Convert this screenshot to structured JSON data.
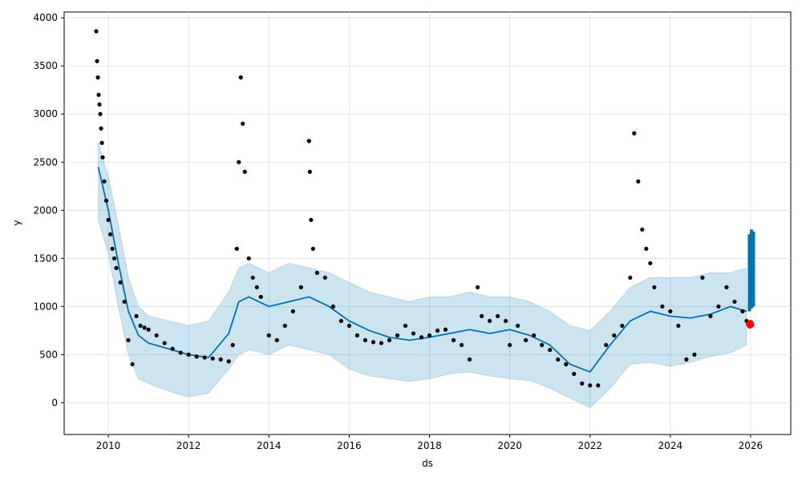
{
  "chart_data": {
    "type": "line",
    "title": "",
    "xlabel": "ds",
    "ylabel": "y",
    "xlim": [
      2008.9,
      2027.0
    ],
    "ylim": [
      -330,
      4060
    ],
    "x_ticks": [
      2010,
      2012,
      2014,
      2016,
      2018,
      2020,
      2022,
      2024,
      2026
    ],
    "y_ticks": [
      0,
      500,
      1000,
      1500,
      2000,
      2500,
      3000,
      3500,
      4000
    ],
    "grid": true,
    "colors": {
      "forecast_line": "#0072B2",
      "interval_fill": "#0072B2",
      "observed_points": "#000000",
      "recent_points": "#ff0000"
    },
    "series": [
      {
        "kind": "interval",
        "x": [
          2009.75,
          2010.0,
          2010.25,
          2010.5,
          2010.75,
          2011.0,
          2011.5,
          2012.0,
          2012.5,
          2013.0,
          2013.25,
          2013.5,
          2014.0,
          2014.5,
          2015.0,
          2015.5,
          2016.0,
          2016.5,
          2017.0,
          2017.5,
          2018.0,
          2018.5,
          2019.0,
          2019.5,
          2020.0,
          2020.5,
          2021.0,
          2021.5,
          2022.0,
          2022.5,
          2023.0,
          2023.5,
          2024.0,
          2024.5,
          2025.0,
          2025.5,
          2025.9
        ],
        "lower": [
          1900,
          1550,
          1000,
          500,
          250,
          200,
          120,
          60,
          100,
          350,
          500,
          550,
          500,
          600,
          550,
          500,
          350,
          280,
          250,
          220,
          250,
          300,
          320,
          280,
          250,
          230,
          150,
          50,
          -50,
          150,
          400,
          420,
          380,
          420,
          480,
          520,
          600
        ],
        "upper": [
          2700,
          2350,
          1850,
          1300,
          1000,
          900,
          850,
          800,
          850,
          1150,
          1400,
          1450,
          1350,
          1450,
          1400,
          1350,
          1250,
          1150,
          1100,
          1050,
          1100,
          1100,
          1150,
          1100,
          1100,
          1050,
          950,
          800,
          750,
          950,
          1200,
          1300,
          1300,
          1300,
          1350,
          1350,
          1400
        ]
      },
      {
        "kind": "trend",
        "x": [
          2009.75,
          2010.0,
          2010.25,
          2010.5,
          2010.75,
          2011.0,
          2011.5,
          2012.0,
          2012.5,
          2013.0,
          2013.25,
          2013.5,
          2014.0,
          2014.5,
          2015.0,
          2015.5,
          2016.0,
          2016.5,
          2017.0,
          2017.5,
          2018.0,
          2018.5,
          2019.0,
          2019.5,
          2020.0,
          2020.5,
          2021.0,
          2021.5,
          2022.0,
          2022.5,
          2023.0,
          2023.5,
          2024.0,
          2024.5,
          2025.0,
          2025.5,
          2025.9
        ],
        "y": [
          2450,
          2000,
          1450,
          950,
          700,
          620,
          560,
          500,
          470,
          720,
          1050,
          1100,
          1000,
          1050,
          1100,
          1000,
          850,
          750,
          680,
          650,
          680,
          720,
          760,
          720,
          760,
          700,
          600,
          400,
          320,
          600,
          850,
          950,
          900,
          880,
          920,
          1000,
          950
        ]
      },
      {
        "kind": "forecast_bar",
        "x": [
          2025.97,
          2026.02,
          2026.07
        ],
        "y": [
          1750,
          1800,
          1780
        ],
        "y0": [
          950,
          980,
          1000
        ]
      },
      {
        "kind": "observed",
        "x": [
          2009.7,
          2009.72,
          2009.74,
          2009.76,
          2009.78,
          2009.8,
          2009.82,
          2009.84,
          2009.86,
          2009.9,
          2009.95,
          2010.0,
          2010.05,
          2010.1,
          2010.15,
          2010.2,
          2010.3,
          2010.4,
          2010.5,
          2010.6,
          2010.7,
          2010.8,
          2010.9,
          2011.0,
          2011.2,
          2011.4,
          2011.6,
          2011.8,
          2012.0,
          2012.2,
          2012.4,
          2012.6,
          2012.8,
          2013.0,
          2013.1,
          2013.2,
          2013.25,
          2013.3,
          2013.35,
          2013.4,
          2013.5,
          2013.6,
          2013.7,
          2013.8,
          2014.0,
          2014.2,
          2014.4,
          2014.6,
          2014.8,
          2015.0,
          2015.02,
          2015.05,
          2015.1,
          2015.2,
          2015.4,
          2015.6,
          2015.8,
          2016.0,
          2016.2,
          2016.4,
          2016.6,
          2016.8,
          2017.0,
          2017.2,
          2017.4,
          2017.6,
          2017.8,
          2018.0,
          2018.2,
          2018.4,
          2018.6,
          2018.8,
          2019.0,
          2019.2,
          2019.3,
          2019.5,
          2019.7,
          2019.9,
          2020.0,
          2020.2,
          2020.4,
          2020.6,
          2020.8,
          2021.0,
          2021.2,
          2021.4,
          2021.6,
          2021.8,
          2022.0,
          2022.2,
          2022.4,
          2022.6,
          2022.8,
          2023.0,
          2023.1,
          2023.2,
          2023.3,
          2023.4,
          2023.5,
          2023.6,
          2023.8,
          2024.0,
          2024.2,
          2024.4,
          2024.6,
          2024.8,
          2025.0,
          2025.2,
          2025.4,
          2025.6,
          2025.8,
          2025.9
        ],
        "y": [
          3860,
          3550,
          3380,
          3200,
          3100,
          3000,
          2850,
          2700,
          2550,
          2300,
          2100,
          1900,
          1750,
          1600,
          1500,
          1400,
          1250,
          1050,
          650,
          400,
          900,
          800,
          780,
          760,
          700,
          620,
          560,
          520,
          500,
          480,
          470,
          460,
          450,
          430,
          600,
          1600,
          2500,
          3380,
          2900,
          2400,
          1500,
          1300,
          1200,
          1100,
          700,
          650,
          800,
          950,
          1200,
          2720,
          2400,
          1900,
          1600,
          1350,
          1300,
          1000,
          850,
          800,
          700,
          650,
          630,
          620,
          650,
          700,
          800,
          720,
          680,
          700,
          750,
          760,
          650,
          600,
          450,
          1200,
          900,
          850,
          900,
          850,
          600,
          800,
          650,
          700,
          600,
          550,
          450,
          400,
          300,
          200,
          180,
          180,
          600,
          700,
          800,
          1300,
          2800,
          2300,
          1800,
          1600,
          1450,
          1200,
          1000,
          950,
          800,
          450,
          500,
          1300,
          900,
          1000,
          1200,
          1050,
          950,
          850
        ]
      },
      {
        "kind": "recent",
        "x": [
          2025.95,
          2025.98,
          2026.0,
          2026.02
        ],
        "y": [
          820,
          800,
          830,
          810
        ]
      }
    ]
  }
}
